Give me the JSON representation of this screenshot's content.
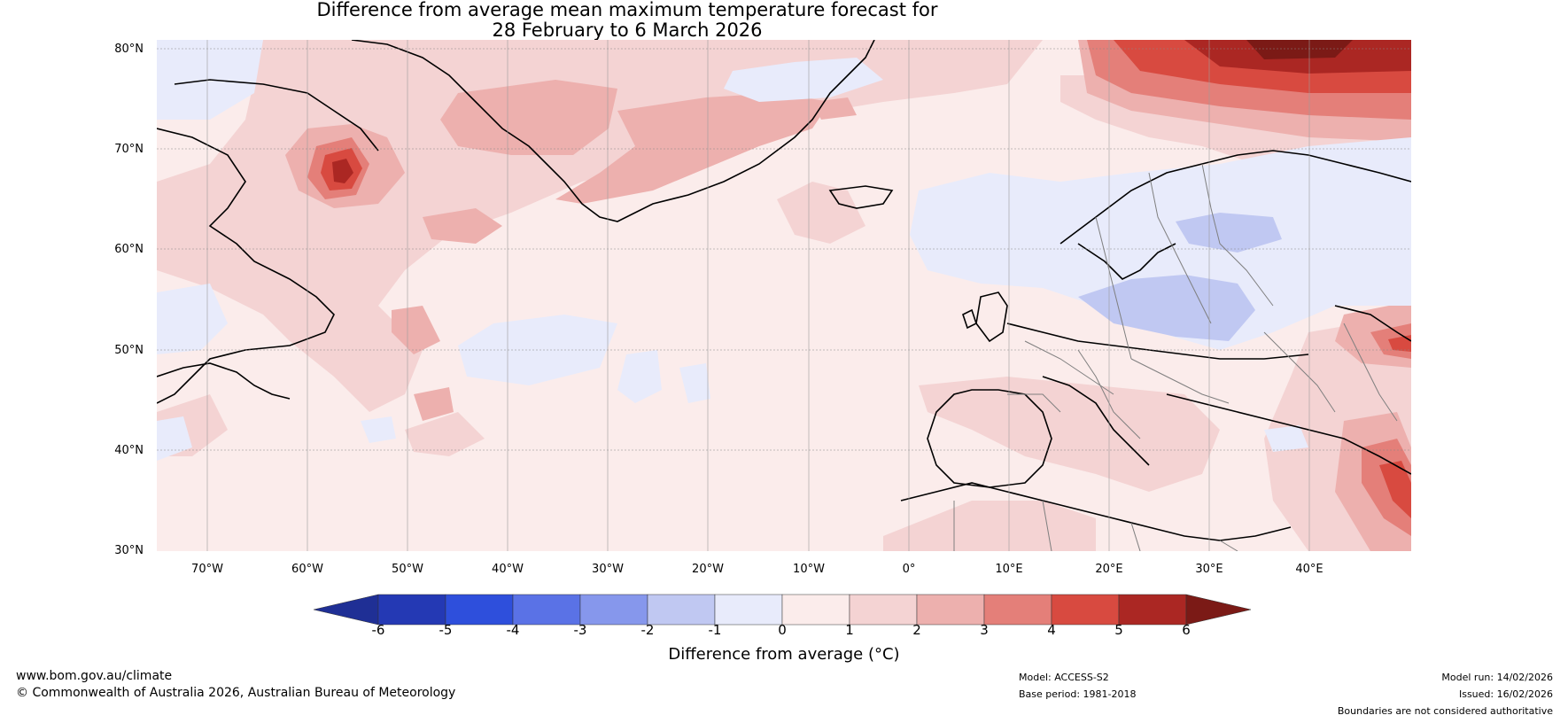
{
  "title": {
    "line1": "Difference from average mean maximum temperature forecast for",
    "line2": "28 February to 6 March 2026"
  },
  "map": {
    "latitude_labels": [
      "80°N",
      "70°N",
      "60°N",
      "50°N",
      "40°N",
      "30°N"
    ],
    "longitude_labels": [
      "70°W",
      "60°W",
      "50°W",
      "40°W",
      "30°W",
      "20°W",
      "10°W",
      "0°",
      "10°E",
      "20°E",
      "30°E",
      "40°E"
    ],
    "colors": {
      "band_0_1": "#fbeceb",
      "band_1_2": "#f4d3d3",
      "band_2_3": "#edb0ae",
      "band_3_4": "#e47f79",
      "band_4_5": "#d84a40",
      "band_5_6": "#ab2723",
      "band_gt6": "#7b1a16",
      "band_m1_0": "#e8ebfb",
      "band_m2_m1": "#c0c8f2",
      "coast": "#000000",
      "borders": "#7f7f7f"
    }
  },
  "colorbar": {
    "ticks": [
      "-6",
      "-5",
      "-4",
      "-3",
      "-2",
      "-1",
      "0",
      "1",
      "2",
      "3",
      "4",
      "5",
      "6"
    ],
    "colors": [
      "#1f2f95",
      "#2439b4",
      "#2e4fdc",
      "#5a72e6",
      "#8697ec",
      "#c0c8f2",
      "#e8ebfb",
      "#fbeceb",
      "#f4d3d3",
      "#edb0ae",
      "#e47f79",
      "#d84a40",
      "#ab2723",
      "#7b1a16"
    ],
    "label": "Difference from average (°C)"
  },
  "footer": {
    "website": "www.bom.gov.au/climate",
    "copyright": "© Commonwealth of Australia 2026, Australian Bureau of Meteorology",
    "model": "Model: ACCESS-S2",
    "base_period": "Base period: 1981-2018",
    "model_run": "Model run: 14/02/2026",
    "issued": "Issued: 16/02/2026",
    "disclaimer": "Boundaries are not considered authoritative"
  }
}
